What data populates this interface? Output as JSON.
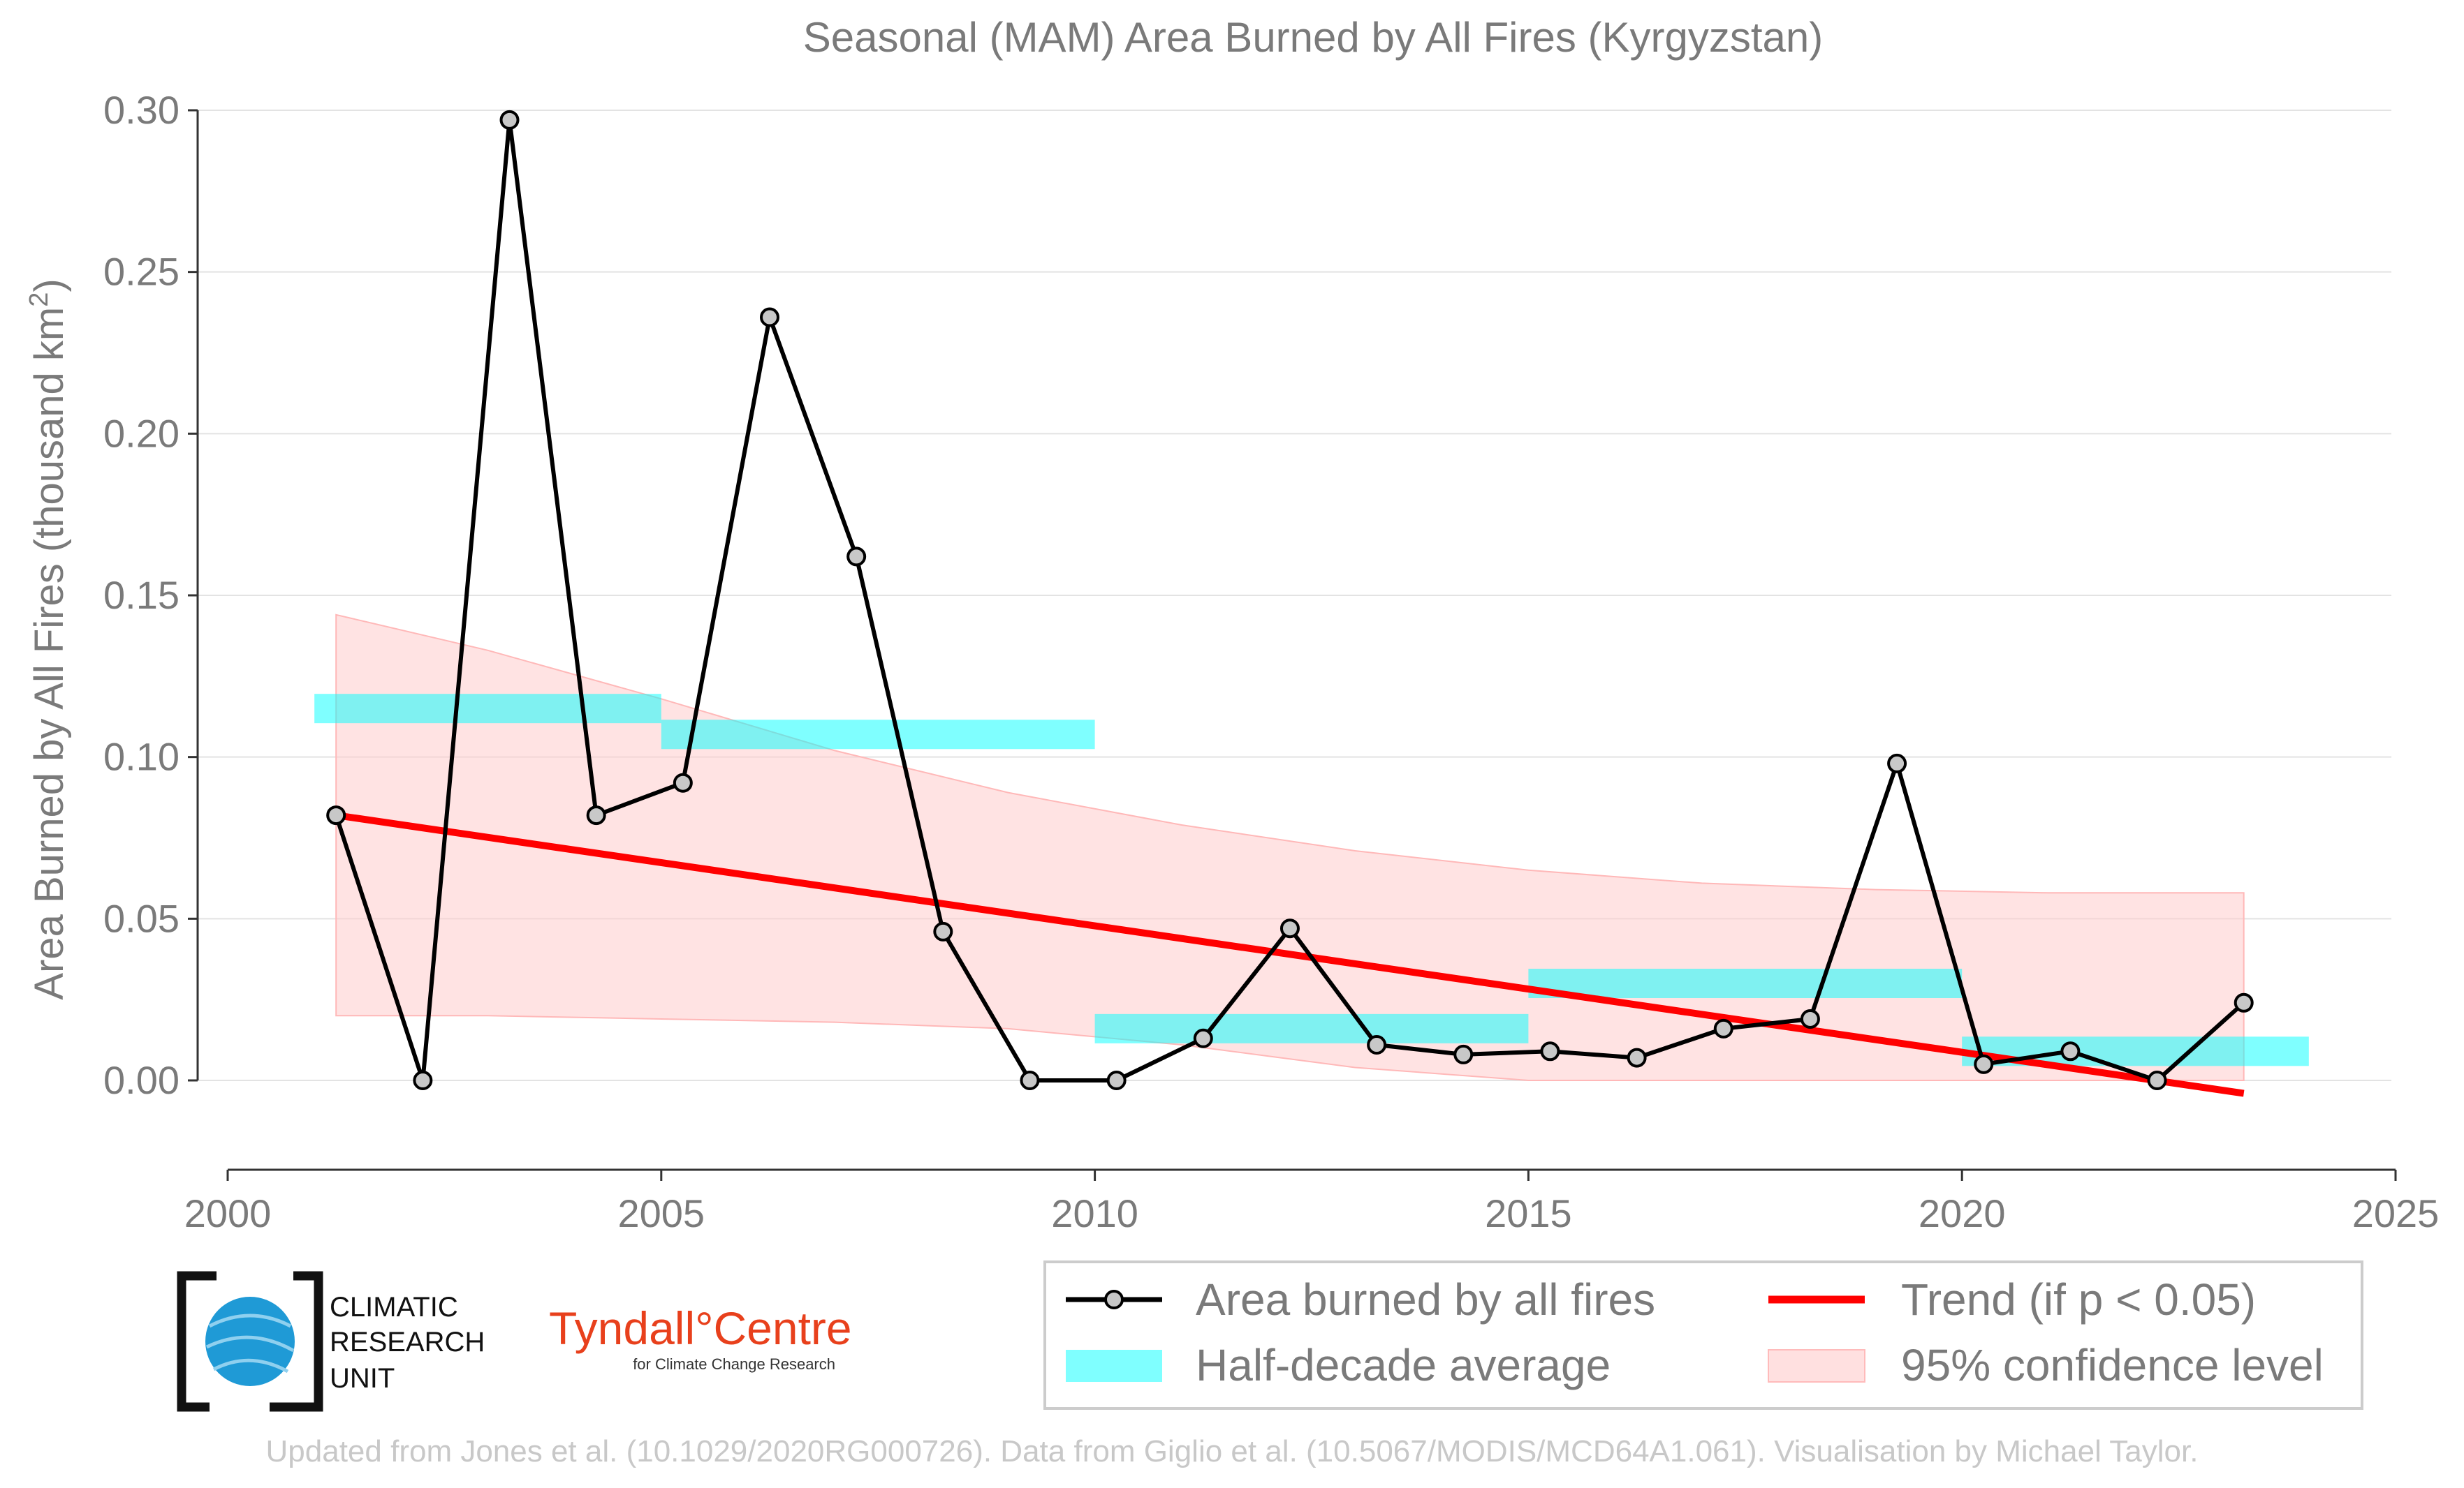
{
  "chart_data": {
    "type": "line",
    "title": "Seasonal (MAM) Area Burned by All Fires (Kyrgyzstan)",
    "xlabel": "",
    "ylabel": "Area Burned by All Fires (thousand km²)",
    "ylabel_main": "Area Burned by All Fires (thousand km",
    "ylabel_sup": "2",
    "ylabel_end": ")",
    "xlim": [
      2000,
      2025
    ],
    "ylim": [
      -0.027,
      0.3
    ],
    "x_ticks": [
      2000,
      2005,
      2010,
      2015,
      2020,
      2025
    ],
    "x_tick_labels": [
      "2000",
      "2005",
      "2010",
      "2015",
      "2020",
      "2025"
    ],
    "y_ticks": [
      0.0,
      0.05,
      0.1,
      0.15,
      0.2,
      0.25,
      0.3
    ],
    "y_tick_labels": [
      "0.00",
      "0.05",
      "0.10",
      "0.15",
      "0.20",
      "0.25",
      "0.30"
    ],
    "grid": true,
    "legend_position": "bottom-right",
    "series": [
      {
        "name": "Area burned by all fires",
        "color": "#000000",
        "marker_fill": "#c8c8c8",
        "x": [
          2001.25,
          2002.25,
          2003.25,
          2004.25,
          2005.25,
          2006.25,
          2007.25,
          2008.25,
          2009.25,
          2010.25,
          2011.25,
          2012.25,
          2013.25,
          2014.25,
          2015.25,
          2016.25,
          2017.25,
          2018.25,
          2019.25,
          2020.25,
          2021.25,
          2022.25,
          2023.25
        ],
        "values": [
          0.082,
          0.0,
          0.297,
          0.082,
          0.092,
          0.236,
          0.162,
          0.046,
          0.0,
          0.0,
          0.013,
          0.047,
          0.011,
          0.008,
          0.009,
          0.007,
          0.016,
          0.019,
          0.098,
          0.005,
          0.009,
          0.0,
          0.024
        ]
      },
      {
        "name": "Half-decade average",
        "color": "#00ffff",
        "segments": [
          {
            "x_start": 2001,
            "x_end": 2005,
            "value": 0.115
          },
          {
            "x_start": 2005,
            "x_end": 2010,
            "value": 0.107
          },
          {
            "x_start": 2010,
            "x_end": 2015,
            "value": 0.016
          },
          {
            "x_start": 2015,
            "x_end": 2020,
            "value": 0.03
          },
          {
            "x_start": 2020,
            "x_end": 2024,
            "value": 0.009
          }
        ]
      },
      {
        "name": "Trend (if p < 0.05)",
        "color": "#ff0000",
        "x": [
          2001.25,
          2023.25
        ],
        "values": [
          0.082,
          -0.004
        ]
      },
      {
        "name": "95% confidence level",
        "color": "#ffcccc",
        "x": [
          2001.25,
          2003,
          2005,
          2007,
          2009,
          2011,
          2013,
          2015,
          2017,
          2019,
          2021,
          2023.25
        ],
        "upper": [
          0.144,
          0.133,
          0.118,
          0.102,
          0.089,
          0.079,
          0.071,
          0.065,
          0.061,
          0.059,
          0.058,
          0.058
        ],
        "lower": [
          0.02,
          0.02,
          0.019,
          0.018,
          0.016,
          0.011,
          0.004,
          0.0,
          0.0,
          0.0,
          0.0,
          0.0
        ]
      }
    ]
  },
  "legend": {
    "items": [
      {
        "label": "Area burned by all fires",
        "kind": "line-marker",
        "color": "#000000"
      },
      {
        "label": "Trend (if p < 0.05)",
        "kind": "line",
        "color": "#ff0000"
      },
      {
        "label": "Half-decade average",
        "kind": "patch",
        "color": "#00ffff"
      },
      {
        "label": "95% confidence level",
        "kind": "patch",
        "color": "#ffcccc"
      }
    ]
  },
  "logos": {
    "cru_line1": "CLIMATIC",
    "cru_line2": "RESEARCH",
    "cru_line3": "UNIT",
    "tyndall_main": "Tyndall°Centre",
    "tyndall_sub": "for Climate Change Research"
  },
  "credit": "Updated from Jones et al. (10.1029/2020RG000726). Data from Giglio et al. (10.5067/MODIS/MCD64A1.061). Visualisation by Michael Taylor."
}
